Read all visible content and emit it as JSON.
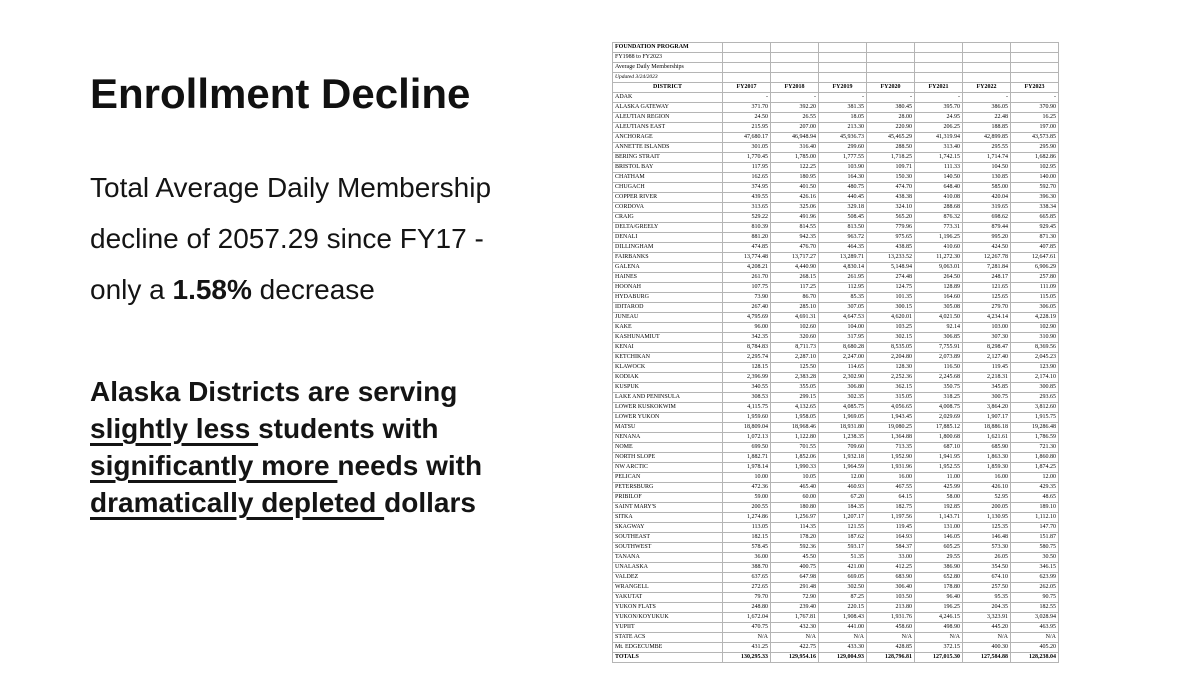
{
  "slide": {
    "title": "Enrollment Decline",
    "para1": {
      "line1": "Total Average Daily Membership",
      "line2": "decline of 2057.29 since FY17 -",
      "line3_pre": "only a ",
      "line3_bold": "1.58%",
      "line3_post": " decrease"
    },
    "para2": {
      "line1": "Alaska Districts are serving",
      "line2_u": "slightly less ",
      "line2_rest": "students with",
      "line3_u": "significantly more ",
      "line3_rest": "needs with",
      "line4_u": "dramatically depleted ",
      "line4_rest": "dollars"
    }
  },
  "table": {
    "meta": [
      "FOUNDATION PROGRAM",
      "FY1988 to FY2023",
      "Average Daily Memberships",
      "Updated 3/24/2023"
    ],
    "columns": [
      "DISTRICT",
      "FY2017",
      "FY2018",
      "FY2019",
      "FY2020",
      "FY2021",
      "FY2022",
      "FY2023"
    ],
    "rows": [
      [
        "ADAK",
        "-",
        "-",
        "-",
        "-",
        "-",
        "-",
        "-"
      ],
      [
        "ALASKA GATEWAY",
        "371.70",
        "392.20",
        "381.35",
        "380.45",
        "395.70",
        "386.05",
        "370.90"
      ],
      [
        "ALEUTIAN REGION",
        "24.50",
        "26.55",
        "18.05",
        "28.00",
        "24.95",
        "22.48",
        "16.25"
      ],
      [
        "ALEUTIANS EAST",
        "215.95",
        "207.00",
        "213.30",
        "220.90",
        "206.25",
        "188.85",
        "197.00"
      ],
      [
        "ANCHORAGE",
        "47,680.17",
        "46,948.94",
        "45,936.73",
        "45,465.29",
        "41,319.94",
        "42,899.85",
        "43,573.85"
      ],
      [
        "ANNETTE ISLANDS",
        "301.05",
        "316.40",
        "299.60",
        "288.50",
        "313.40",
        "295.55",
        "295.90"
      ],
      [
        "BERING STRAIT",
        "1,770.45",
        "1,785.00",
        "1,777.55",
        "1,718.25",
        "1,742.15",
        "1,714.74",
        "1,682.86"
      ],
      [
        "BRISTOL BAY",
        "117.95",
        "122.25",
        "103.90",
        "109.71",
        "111.33",
        "104.50",
        "102.95"
      ],
      [
        "CHATHAM",
        "162.65",
        "180.95",
        "164.30",
        "150.30",
        "140.50",
        "130.85",
        "140.00"
      ],
      [
        "CHUGACH",
        "374.95",
        "401.50",
        "480.75",
        "474.70",
        "648.40",
        "585.00",
        "592.70"
      ],
      [
        "COPPER RIVER",
        "439.55",
        "426.16",
        "440.45",
        "438.38",
        "410.08",
        "420.04",
        "396.30"
      ],
      [
        "CORDOVA",
        "313.65",
        "325.06",
        "329.18",
        "324.10",
        "288.68",
        "319.65",
        "338.34"
      ],
      [
        "CRAIG",
        "529.22",
        "491.96",
        "508.45",
        "565.20",
        "876.32",
        "698.62",
        "665.85"
      ],
      [
        "DELTA/GREELY",
        "810.39",
        "814.55",
        "813.50",
        "779.96",
        "773.31",
        "879.44",
        "929.45"
      ],
      [
        "DENALI",
        "881.20",
        "942.35",
        "963.72",
        "975.65",
        "1,196.25",
        "995.20",
        "871.30"
      ],
      [
        "DILLINGHAM",
        "474.85",
        "476.70",
        "464.35",
        "438.85",
        "410.60",
        "424.50",
        "407.85"
      ],
      [
        "FAIRBANKS",
        "13,774.48",
        "13,717.27",
        "13,289.71",
        "13,233.52",
        "11,272.30",
        "12,267.78",
        "12,647.61"
      ],
      [
        "GALENA",
        "4,208.21",
        "4,440.90",
        "4,830.14",
        "5,148.94",
        "9,063.01",
        "7,281.84",
        "6,906.29"
      ],
      [
        "HAINES",
        "261.70",
        "268.15",
        "261.95",
        "274.48",
        "264.50",
        "248.17",
        "257.80"
      ],
      [
        "HOONAH",
        "107.75",
        "117.25",
        "112.95",
        "124.75",
        "128.89",
        "121.65",
        "111.09"
      ],
      [
        "HYDABURG",
        "73.90",
        "86.70",
        "85.35",
        "101.35",
        "164.60",
        "125.65",
        "115.05"
      ],
      [
        "IDITAROD",
        "267.40",
        "285.10",
        "307.05",
        "300.15",
        "305.08",
        "279.70",
        "306.05"
      ],
      [
        "JUNEAU",
        "4,795.69",
        "4,691.31",
        "4,647.53",
        "4,620.01",
        "4,021.50",
        "4,234.14",
        "4,228.19"
      ],
      [
        "KAKE",
        "96.00",
        "102.60",
        "104.00",
        "103.25",
        "92.14",
        "103.00",
        "102.90"
      ],
      [
        "KASHUNAMIUT",
        "342.35",
        "320.60",
        "317.95",
        "302.15",
        "306.85",
        "307.30",
        "310.90"
      ],
      [
        "KENAI",
        "8,784.83",
        "8,711.73",
        "8,680.28",
        "8,535.05",
        "7,755.91",
        "8,298.47",
        "8,369.56"
      ],
      [
        "KETCHIKAN",
        "2,295.74",
        "2,287.10",
        "2,247.00",
        "2,204.80",
        "2,073.89",
        "2,127.40",
        "2,045.23"
      ],
      [
        "KLAWOCK",
        "128.15",
        "125.50",
        "114.65",
        "128.30",
        "116.50",
        "119.45",
        "123.90"
      ],
      [
        "KODIAK",
        "2,396.99",
        "2,383.28",
        "2,302.90",
        "2,252.36",
        "2,245.68",
        "2,218.31",
        "2,174.10"
      ],
      [
        "KUSPUK",
        "340.55",
        "355.05",
        "306.80",
        "362.15",
        "350.75",
        "345.85",
        "300.85"
      ],
      [
        "LAKE AND PENINSULA",
        "308.53",
        "299.15",
        "302.35",
        "315.05",
        "318.25",
        "300.75",
        "293.65"
      ],
      [
        "LOWER KUSKOKWIM",
        "4,115.75",
        "4,132.65",
        "4,085.75",
        "4,056.65",
        "4,008.75",
        "3,864.20",
        "3,812.60"
      ],
      [
        "LOWER YUKON",
        "1,959.60",
        "1,958.05",
        "1,969.05",
        "1,943.45",
        "2,029.69",
        "1,907.17",
        "1,915.75"
      ],
      [
        "MATSU",
        "18,809.04",
        "18,968.46",
        "18,931.80",
        "19,080.25",
        "17,885.12",
        "18,886.18",
        "19,286.48"
      ],
      [
        "NENANA",
        "1,072.13",
        "1,122.80",
        "1,238.35",
        "1,364.88",
        "1,800.68",
        "1,621.61",
        "1,786.59"
      ],
      [
        "NOME",
        "699.50",
        "701.55",
        "709.60",
        "713.35",
        "687.10",
        "685.90",
        "721.30"
      ],
      [
        "NORTH SLOPE",
        "1,882.71",
        "1,852.06",
        "1,932.18",
        "1,952.90",
        "1,941.95",
        "1,863.30",
        "1,860.80"
      ],
      [
        "NW ARCTIC",
        "1,978.14",
        "1,990.33",
        "1,964.59",
        "1,931.96",
        "1,952.55",
        "1,859.30",
        "1,874.25"
      ],
      [
        "PELICAN",
        "10.00",
        "10.05",
        "12.00",
        "16.00",
        "11.00",
        "16.00",
        "12.00"
      ],
      [
        "PETERSBURG",
        "472.36",
        "465.40",
        "460.93",
        "467.55",
        "425.99",
        "426.10",
        "429.35"
      ],
      [
        "PRIBILOF",
        "59.00",
        "60.00",
        "67.20",
        "64.15",
        "58.00",
        "52.95",
        "48.65"
      ],
      [
        "SAINT MARY'S",
        "200.55",
        "180.80",
        "184.35",
        "182.75",
        "192.85",
        "200.05",
        "189.10"
      ],
      [
        "SITKA",
        "1,274.86",
        "1,256.97",
        "1,207.17",
        "1,197.56",
        "1,143.71",
        "1,130.95",
        "1,112.10"
      ],
      [
        "SKAGWAY",
        "113.05",
        "114.35",
        "121.55",
        "119.45",
        "131.00",
        "125.35",
        "147.70"
      ],
      [
        "SOUTHEAST",
        "182.15",
        "178.20",
        "187.62",
        "164.93",
        "146.05",
        "146.48",
        "151.87"
      ],
      [
        "SOUTHWEST",
        "578.45",
        "592.36",
        "593.17",
        "584.37",
        "605.25",
        "573.30",
        "580.75"
      ],
      [
        "TANANA",
        "36.00",
        "45.50",
        "51.35",
        "33.00",
        "29.55",
        "26.05",
        "30.50"
      ],
      [
        "UNALASKA",
        "388.70",
        "400.75",
        "421.00",
        "412.25",
        "386.90",
        "354.50",
        "346.15"
      ],
      [
        "VALDEZ",
        "637.65",
        "647.98",
        "669.05",
        "683.90",
        "652.80",
        "674.10",
        "623.99"
      ],
      [
        "WRANGELL",
        "272.65",
        "291.48",
        "302.50",
        "306.40",
        "178.80",
        "257.50",
        "262.05"
      ],
      [
        "YAKUTAT",
        "79.70",
        "72.90",
        "87.25",
        "103.50",
        "96.40",
        "95.35",
        "90.75"
      ],
      [
        "YUKON FLATS",
        "248.80",
        "239.40",
        "220.15",
        "213.80",
        "196.25",
        "204.35",
        "182.55"
      ],
      [
        "YUKON/KOYUKUK",
        "1,672.04",
        "1,767.81",
        "1,908.43",
        "1,931.76",
        "4,246.15",
        "3,323.91",
        "3,028.94"
      ],
      [
        "YUPIIT",
        "470.75",
        "432.30",
        "441.00",
        "458.60",
        "498.90",
        "445.20",
        "463.95"
      ],
      [
        "STATE ACS",
        "N/A",
        "N/A",
        "N/A",
        "N/A",
        "N/A",
        "N/A",
        "N/A"
      ],
      [
        "Mt. EDGECUMBE",
        "431.25",
        "422.75",
        "433.30",
        "428.85",
        "372.15",
        "400.30",
        "405.20"
      ]
    ],
    "totals": [
      "TOTALS",
      "130,295.33",
      "129,954.16",
      "129,004.93",
      "128,796.81",
      "127,015.30",
      "127,584.88",
      "128,238.04"
    ]
  }
}
